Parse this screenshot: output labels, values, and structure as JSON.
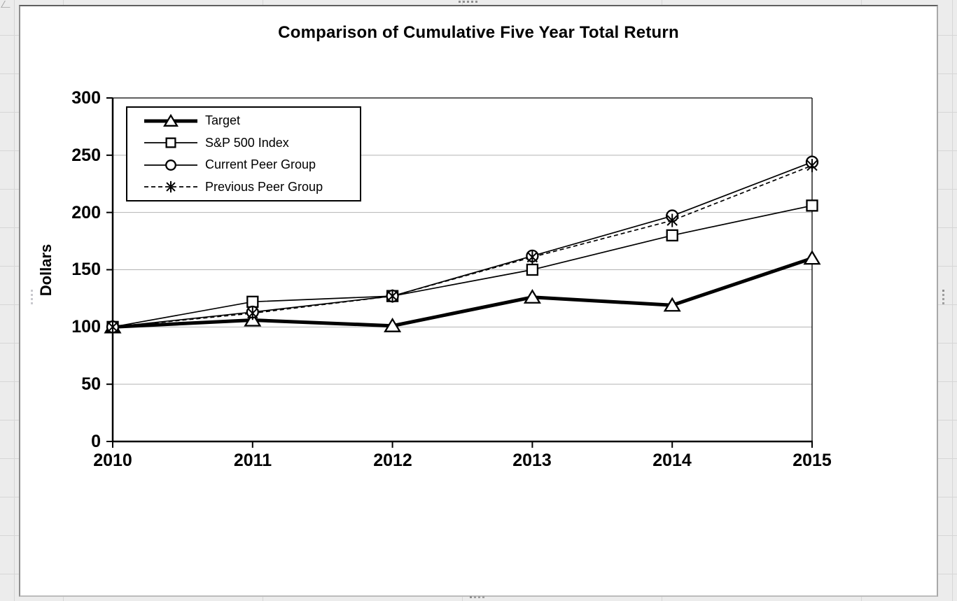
{
  "chart_data": {
    "type": "line",
    "title": "Comparison of Cumulative Five Year Total Return",
    "xlabel": "",
    "ylabel": "Dollars",
    "x": [
      "2010",
      "2011",
      "2012",
      "2013",
      "2014",
      "2015"
    ],
    "yticks": [
      "0",
      "50",
      "100",
      "150",
      "200",
      "250",
      "300"
    ],
    "ylim": [
      0,
      300
    ],
    "grid": true,
    "legend_position": "inside-top-left",
    "colors": {
      "series": "#000000",
      "gridline": "#b3b3b3",
      "axis": "#000000"
    },
    "series": [
      {
        "name": "Target",
        "marker": "triangle",
        "line": "thick-solid",
        "color": "#000000",
        "values": [
          100,
          106,
          101,
          126,
          119,
          160
        ]
      },
      {
        "name": "S&P 500 Index",
        "marker": "square",
        "line": "thin-solid",
        "color": "#000000",
        "values": [
          100,
          122,
          127,
          150,
          180,
          206
        ]
      },
      {
        "name": "Current Peer Group",
        "marker": "circle",
        "line": "thin-solid",
        "color": "#000000",
        "values": [
          100,
          113,
          127,
          162,
          197,
          244
        ]
      },
      {
        "name": "Previous Peer Group",
        "marker": "asterisk",
        "line": "thin-dashed",
        "color": "#000000",
        "values": [
          100,
          112,
          127,
          161,
          193,
          241
        ]
      }
    ]
  }
}
